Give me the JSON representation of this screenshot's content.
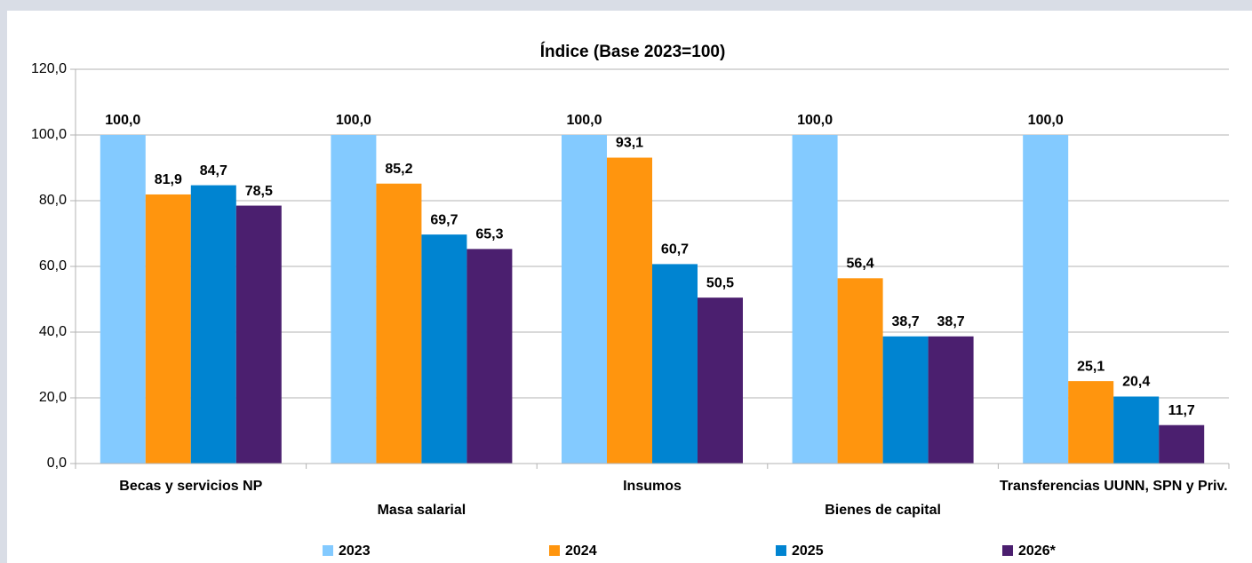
{
  "chart_data": {
    "type": "bar",
    "title": "Índice (Base 2023=100)",
    "categories": [
      "Becas y servicios NP",
      "Masa salarial",
      "Insumos",
      "Bienes de capital",
      "Transferencias UUNN, SPN y Priv."
    ],
    "series": [
      {
        "name": "2023",
        "color": "#83caff",
        "values": [
          100,
          100,
          100,
          100,
          100
        ],
        "value_labels": [
          "100,0",
          "100,0",
          "100,0",
          "100,0",
          "100,0"
        ]
      },
      {
        "name": "2024",
        "color": "#ff950e",
        "values": [
          81.9,
          85.2,
          93.1,
          56.4,
          25.1
        ],
        "value_labels": [
          "81,9",
          "85,2",
          "93,1",
          "56,4",
          "25,1"
        ]
      },
      {
        "name": "2025",
        "color": "#0084d1",
        "values": [
          84.7,
          69.7,
          60.7,
          38.7,
          20.4
        ],
        "value_labels": [
          "84,7",
          "69,7",
          "60,7",
          "38,7",
          "20,4"
        ]
      },
      {
        "name": "2026*",
        "color": "#4b1f6f",
        "values": [
          78.5,
          65.3,
          50.5,
          38.7,
          11.7
        ],
        "value_labels": [
          "78,5",
          "65,3",
          "50,5",
          "38,7",
          "11,7"
        ]
      }
    ],
    "ylim": [
      0,
      120
    ],
    "yticks": [
      {
        "value": 0,
        "label": "0,0"
      },
      {
        "value": 20,
        "label": "20,0"
      },
      {
        "value": 40,
        "label": "40,0"
      },
      {
        "value": 60,
        "label": "60,0"
      },
      {
        "value": 80,
        "label": "80,0"
      },
      {
        "value": 100,
        "label": "100,0"
      },
      {
        "value": 120,
        "label": "120,0"
      }
    ],
    "grid": true,
    "legend": "bottom"
  }
}
